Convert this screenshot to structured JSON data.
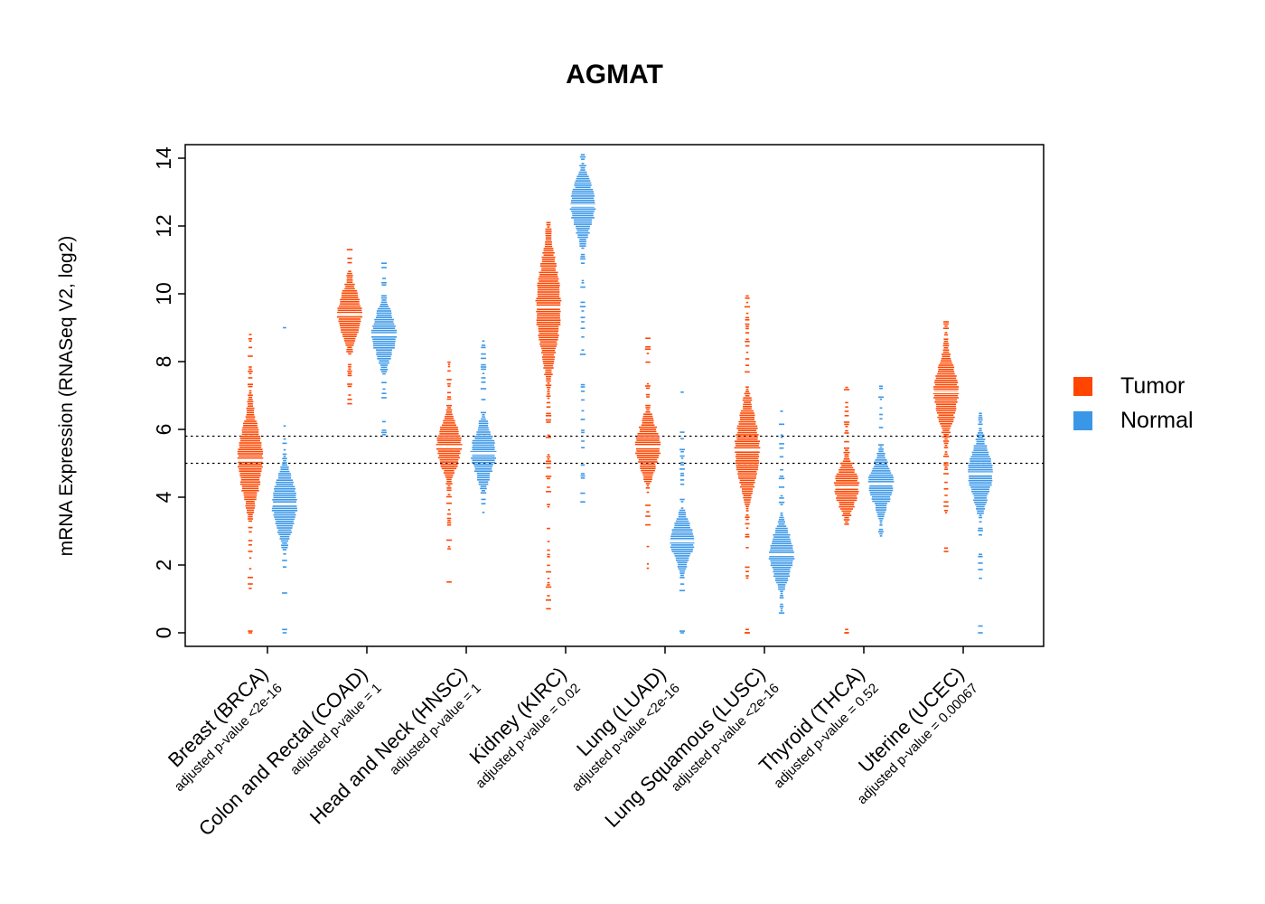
{
  "title": "AGMAT",
  "y_axis": {
    "label": "mRNA Expression (RNASeq V2, log2)",
    "ticks": [
      "0",
      "2",
      "4",
      "6",
      "8",
      "10",
      "12",
      "14"
    ],
    "min": 0,
    "max": 14
  },
  "legend": {
    "items": [
      {
        "label": "Tumor",
        "color": "#FF4500"
      },
      {
        "label": "Normal",
        "color": "#3A97E8"
      }
    ]
  },
  "reference_lines": [
    5.8,
    5.0
  ],
  "chart_data": {
    "type": "violin",
    "title": "AGMAT",
    "ylabel": "mRNA Expression (RNASeq V2, log2)",
    "ylim": [
      0,
      14
    ],
    "groups": [
      "Tumor",
      "Normal"
    ],
    "series_colors": {
      "tumor": "#FF4500",
      "normal": "#3A97E8"
    },
    "categories": [
      {
        "label": "Breast (BRCA)",
        "pvalue": "adjusted p-value <2e-16",
        "tumor": {
          "low": 1.3,
          "q1": 4.3,
          "median": 5.1,
          "q3": 6.0,
          "high": 8.8,
          "outliers": [
            0,
            0.05
          ]
        },
        "normal": {
          "low": 0.9,
          "q1": 3.1,
          "median": 3.8,
          "q3": 4.4,
          "high": 6.1,
          "outliers": [
            0,
            0.1,
            9.0
          ]
        }
      },
      {
        "label": "Colon and Rectal (COAD)",
        "pvalue": "adjusted p-value = 1",
        "tumor": {
          "low": 6.7,
          "q1": 8.9,
          "median": 9.4,
          "q3": 10.0,
          "high": 11.3,
          "outliers": []
        },
        "normal": {
          "low": 5.8,
          "q1": 8.3,
          "median": 8.8,
          "q3": 9.4,
          "high": 10.9,
          "outliers": []
        }
      },
      {
        "label": "Head and Neck (HNSC)",
        "pvalue": "adjusted p-value = 1",
        "tumor": {
          "low": 2.4,
          "q1": 5.0,
          "median": 5.5,
          "q3": 6.1,
          "high": 8.3,
          "outliers": [
            1.5
          ]
        },
        "normal": {
          "low": 3.3,
          "q1": 4.8,
          "median": 5.3,
          "q3": 5.9,
          "high": 8.8,
          "outliers": []
        }
      },
      {
        "label": "Kidney (KIRC)",
        "pvalue": "adjusted p-value = 0.02",
        "tumor": {
          "low": 0.7,
          "q1": 8.4,
          "median": 9.6,
          "q3": 10.6,
          "high": 12.1,
          "outliers": []
        },
        "normal": {
          "low": 3.8,
          "q1": 11.9,
          "median": 12.6,
          "q3": 13.1,
          "high": 14.1,
          "outliers": []
        }
      },
      {
        "label": "Lung (LUAD)",
        "pvalue": "adjusted p-value <2e-16",
        "tumor": {
          "low": 1.8,
          "q1": 5.1,
          "median": 5.5,
          "q3": 6.2,
          "high": 9.2,
          "outliers": []
        },
        "normal": {
          "low": 1.0,
          "q1": 2.2,
          "median": 2.7,
          "q3": 3.1,
          "high": 6.3,
          "outliers": [
            0,
            0.05,
            7.1
          ]
        }
      },
      {
        "label": "Lung Squamous (LUSC)",
        "pvalue": "adjusted p-value <2e-16",
        "tumor": {
          "low": 1.4,
          "q1": 4.7,
          "median": 5.4,
          "q3": 6.4,
          "high": 10.0,
          "outliers": [
            0,
            0,
            0.1
          ]
        },
        "normal": {
          "low": 0.2,
          "q1": 1.8,
          "median": 2.3,
          "q3": 2.9,
          "high": 6.6,
          "outliers": []
        }
      },
      {
        "label": "Thyroid (THCA)",
        "pvalue": "adjusted p-value = 0.52",
        "tumor": {
          "low": 2.6,
          "q1": 3.8,
          "median": 4.3,
          "q3": 4.8,
          "high": 7.3,
          "outliers": [
            0,
            0,
            0.1
          ]
        },
        "normal": {
          "low": 2.8,
          "q1": 4.0,
          "median": 4.4,
          "q3": 5.0,
          "high": 7.4,
          "outliers": []
        }
      },
      {
        "label": "Uterine (UCEC)",
        "pvalue": "adjusted p-value = 0.00067",
        "tumor": {
          "low": 3.5,
          "q1": 6.2,
          "median": 7.1,
          "q3": 7.6,
          "high": 9.3,
          "outliers": [
            2.4,
            2.5
          ]
        },
        "normal": {
          "low": 1.2,
          "q1": 3.8,
          "median": 4.7,
          "q3": 5.0,
          "high": 6.6,
          "outliers": [
            0,
            0.2
          ]
        }
      }
    ]
  }
}
